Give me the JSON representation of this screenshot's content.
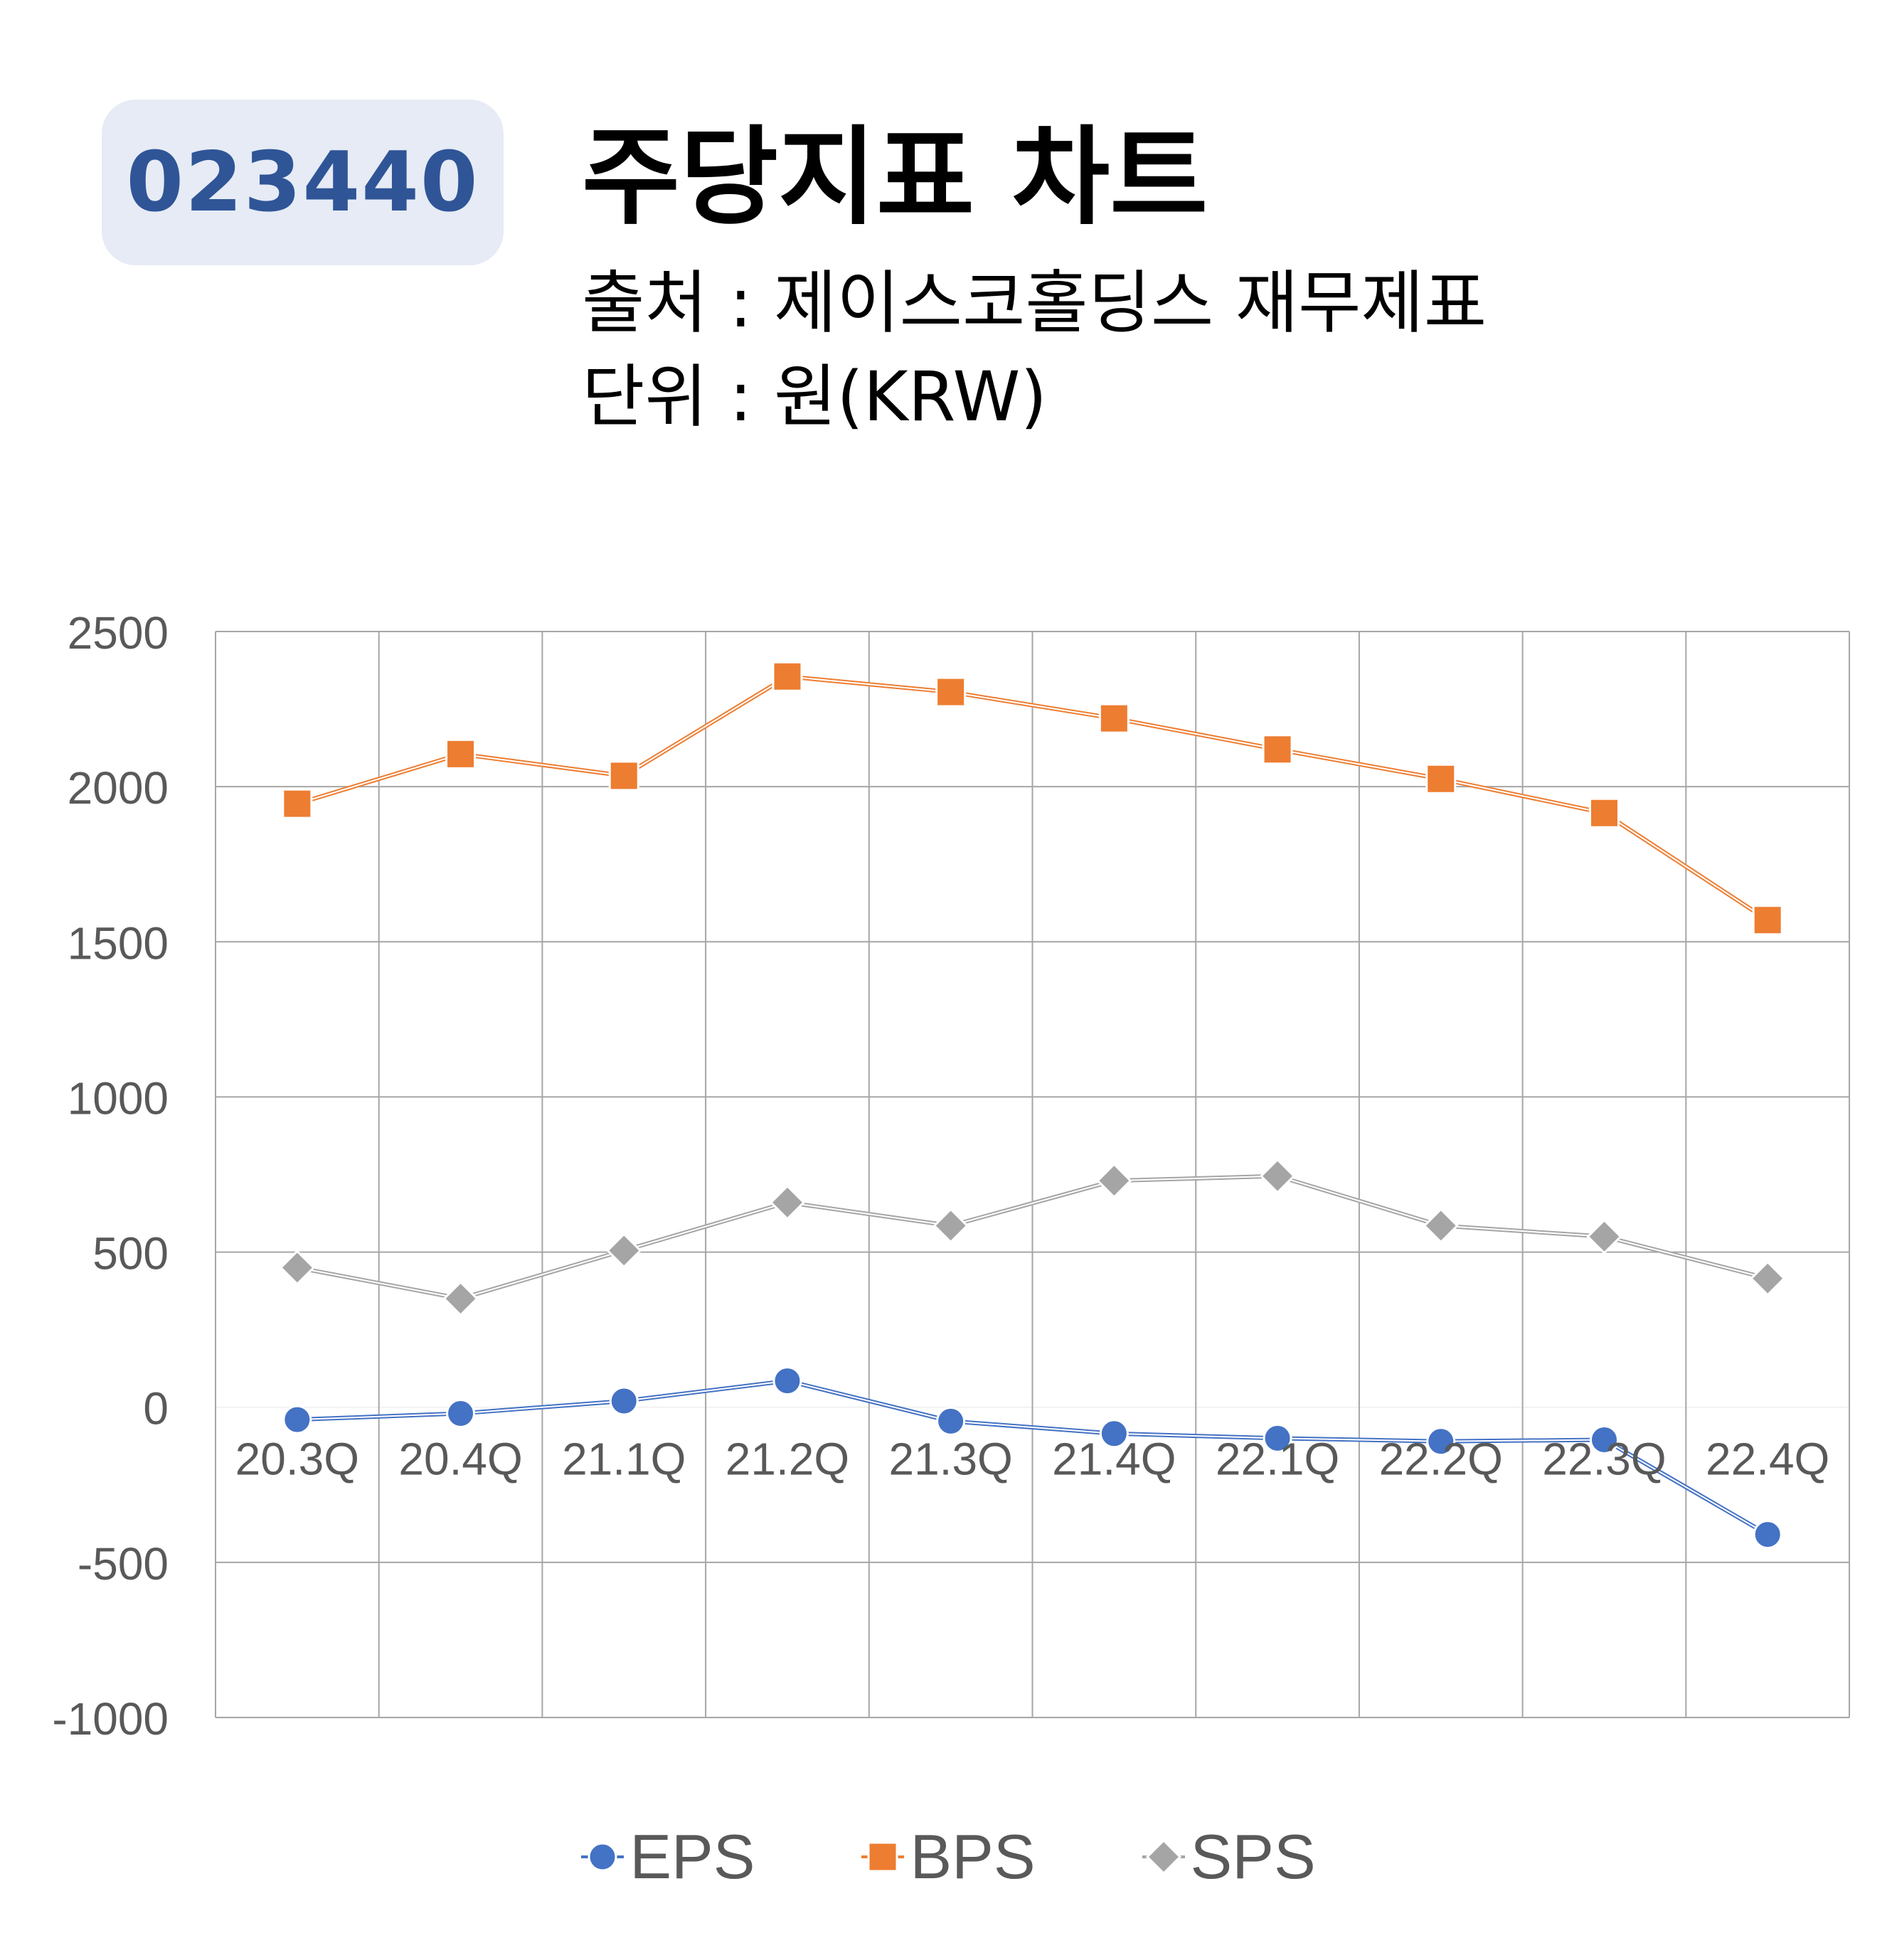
{
  "badge": {
    "code": "023440"
  },
  "header": {
    "title": "주당지표 차트",
    "source": "출처 : 제이스코홀딩스 재무제표",
    "unit": "단위 : 원(KRW)"
  },
  "chart_data": {
    "type": "line",
    "title": "",
    "xlabel": "",
    "ylabel": "",
    "categories": [
      "20.3Q",
      "20.4Q",
      "21.1Q",
      "21.2Q",
      "21.3Q",
      "21.4Q",
      "22.1Q",
      "22.2Q",
      "22.3Q",
      "22.4Q"
    ],
    "ylim": [
      -1000,
      2500
    ],
    "yticks": [
      2500,
      2000,
      1500,
      1000,
      500,
      0,
      -500,
      -1000
    ],
    "grid": true,
    "legend_position": "bottom",
    "series": [
      {
        "name": "EPS",
        "color": "#4472c4",
        "marker": "circle",
        "values": [
          -40,
          -20,
          20,
          85,
          -45,
          -85,
          -100,
          -110,
          -105,
          -410
        ]
      },
      {
        "name": "BPS",
        "color": "#ed7d31",
        "marker": "square",
        "values": [
          1945,
          2105,
          2035,
          2355,
          2305,
          2220,
          2120,
          2025,
          1915,
          1570
        ]
      },
      {
        "name": "SPS",
        "color": "#a5a5a5",
        "marker": "diamond",
        "values": [
          450,
          350,
          505,
          660,
          585,
          730,
          745,
          585,
          550,
          415
        ]
      }
    ]
  }
}
